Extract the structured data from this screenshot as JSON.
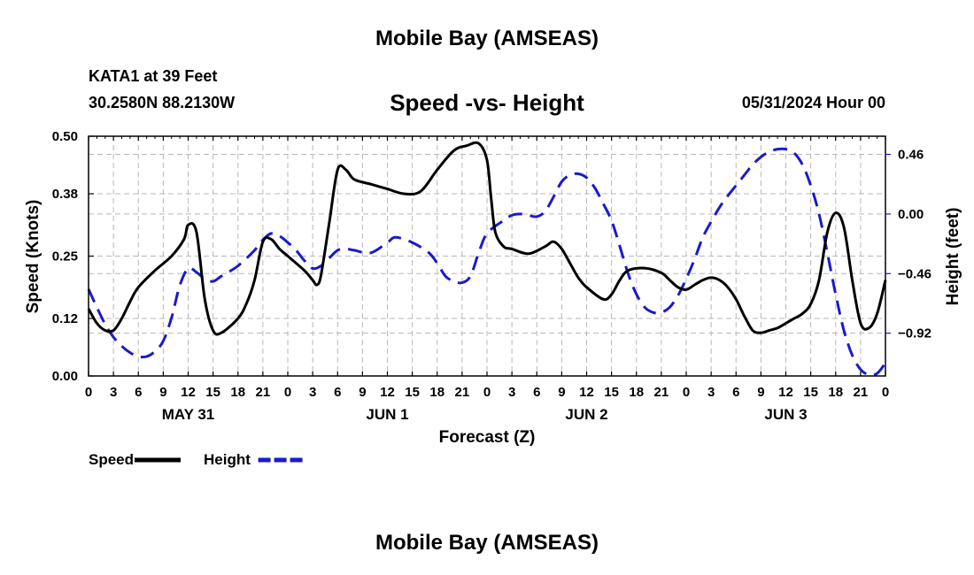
{
  "header": {
    "title": "Mobile Bay (AMSEAS)",
    "station": "KATA1 at 39 Feet",
    "coordinates": "30.2580N  88.2130W",
    "subtitle": "Speed -vs- Height",
    "datetime": "05/31/2024 Hour 00"
  },
  "footer": {
    "title": "Mobile Bay (AMSEAS)"
  },
  "chart_data": {
    "type": "line",
    "xlabel": "Forecast (Z)",
    "ylabel": "Speed (Knots)",
    "y2label": "Height (feet)",
    "x_hours": [
      0,
      3,
      6,
      9,
      12,
      15,
      18,
      21,
      24,
      27,
      30,
      33,
      36,
      39,
      42,
      45,
      48,
      51,
      54,
      57,
      60,
      63,
      66,
      69,
      72,
      75,
      78,
      81,
      84,
      87,
      90,
      93,
      96
    ],
    "x_tick_labels": [
      "0",
      "3",
      "6",
      "9",
      "12",
      "15",
      "18",
      "21",
      "0",
      "3",
      "6",
      "9",
      "12",
      "15",
      "18",
      "21",
      "0",
      "3",
      "6",
      "9",
      "12",
      "15",
      "18",
      "21",
      "0",
      "3",
      "6",
      "9",
      "12",
      "15",
      "18",
      "21",
      "0"
    ],
    "day_labels": [
      {
        "hour": 12,
        "label": "MAY 31"
      },
      {
        "hour": 36,
        "label": "JUN 1"
      },
      {
        "hour": 60,
        "label": "JUN 2"
      },
      {
        "hour": 84,
        "label": "JUN 3"
      }
    ],
    "ylim": [
      0,
      0.5
    ],
    "y_ticks": [
      0.0,
      0.12,
      0.25,
      0.38,
      0.5
    ],
    "y_tick_labels": [
      "0.00",
      "0.12",
      "0.25",
      "0.38",
      "0.50"
    ],
    "y2lim": [
      -1.25,
      0.6
    ],
    "y2_ticks": [
      -0.92,
      -0.46,
      0.0,
      0.46
    ],
    "y2_tick_labels": [
      "−0.92",
      "−0.46",
      "0.00",
      "0.46"
    ],
    "grid": true,
    "legend": "bottom-left",
    "series": [
      {
        "name": "Speed",
        "axis": "left",
        "color": "#000000",
        "style": "solid",
        "hours": [
          0,
          1,
          2,
          3,
          4,
          5,
          6,
          8,
          10,
          11.5,
          12,
          13,
          14,
          15,
          16,
          18,
          19,
          20,
          21,
          22,
          23,
          24,
          26,
          27,
          27.5,
          28,
          29,
          30,
          31,
          32,
          34,
          36,
          38,
          40,
          42,
          44,
          45.5,
          47,
          48,
          48.5,
          49,
          50,
          51,
          53,
          55,
          56,
          57,
          58,
          59,
          60,
          62,
          63,
          64,
          65,
          67,
          69,
          70,
          71,
          72,
          73,
          74,
          75,
          76,
          77,
          78,
          79,
          80,
          81,
          82,
          83,
          84,
          85,
          86,
          87,
          88,
          89,
          90,
          91,
          92,
          93,
          94,
          95,
          96
        ],
        "values": [
          0.14,
          0.11,
          0.095,
          0.095,
          0.12,
          0.155,
          0.185,
          0.22,
          0.25,
          0.285,
          0.315,
          0.3,
          0.16,
          0.095,
          0.09,
          0.12,
          0.15,
          0.2,
          0.28,
          0.285,
          0.265,
          0.25,
          0.22,
          0.2,
          0.19,
          0.21,
          0.32,
          0.43,
          0.43,
          0.41,
          0.4,
          0.39,
          0.38,
          0.385,
          0.43,
          0.47,
          0.48,
          0.485,
          0.45,
          0.37,
          0.3,
          0.27,
          0.265,
          0.255,
          0.27,
          0.28,
          0.265,
          0.235,
          0.205,
          0.185,
          0.16,
          0.17,
          0.2,
          0.22,
          0.225,
          0.215,
          0.2,
          0.185,
          0.18,
          0.19,
          0.2,
          0.205,
          0.2,
          0.185,
          0.16,
          0.125,
          0.095,
          0.09,
          0.095,
          0.1,
          0.11,
          0.12,
          0.13,
          0.15,
          0.2,
          0.3,
          0.34,
          0.31,
          0.2,
          0.11,
          0.1,
          0.13,
          0.2
        ]
      },
      {
        "name": "Height",
        "axis": "right",
        "color": "#1a1acc",
        "style": "dashed",
        "hours": [
          0,
          1,
          2,
          3,
          4,
          5,
          6,
          7,
          8,
          9,
          10,
          11,
          12,
          13,
          14,
          15,
          16,
          18,
          20,
          21,
          22,
          23,
          24,
          25,
          26,
          27,
          28,
          29,
          30,
          31,
          32,
          34,
          36,
          37,
          39,
          41,
          42,
          43,
          44,
          45,
          46,
          47,
          48,
          50,
          51,
          52,
          53,
          54,
          55,
          56,
          57,
          58,
          59,
          60,
          61,
          62,
          63,
          64,
          65,
          66,
          67,
          68,
          69,
          70,
          71,
          72,
          73,
          74,
          75,
          76,
          77,
          78,
          79,
          80,
          81,
          82,
          83,
          84,
          85,
          86,
          87,
          88,
          89,
          90,
          91,
          92,
          93,
          94,
          95,
          96
        ],
        "values": [
          -0.58,
          -0.72,
          -0.85,
          -0.95,
          -1.02,
          -1.07,
          -1.1,
          -1.1,
          -1.06,
          -0.98,
          -0.8,
          -0.55,
          -0.42,
          -0.45,
          -0.5,
          -0.52,
          -0.48,
          -0.4,
          -0.28,
          -0.2,
          -0.15,
          -0.17,
          -0.22,
          -0.28,
          -0.36,
          -0.42,
          -0.4,
          -0.34,
          -0.28,
          -0.27,
          -0.28,
          -0.3,
          -0.22,
          -0.18,
          -0.22,
          -0.3,
          -0.38,
          -0.48,
          -0.52,
          -0.53,
          -0.48,
          -0.3,
          -0.15,
          -0.05,
          -0.01,
          0.0,
          -0.01,
          -0.02,
          0.02,
          0.13,
          0.25,
          0.3,
          0.31,
          0.28,
          0.2,
          0.08,
          -0.05,
          -0.25,
          -0.46,
          -0.62,
          -0.72,
          -0.76,
          -0.76,
          -0.72,
          -0.63,
          -0.5,
          -0.35,
          -0.18,
          -0.06,
          0.05,
          0.14,
          0.22,
          0.3,
          0.38,
          0.44,
          0.48,
          0.5,
          0.5,
          0.47,
          0.38,
          0.22,
          0.0,
          -0.3,
          -0.62,
          -0.9,
          -1.09,
          -1.2,
          -1.24,
          -1.23,
          -1.15
        ]
      }
    ]
  }
}
